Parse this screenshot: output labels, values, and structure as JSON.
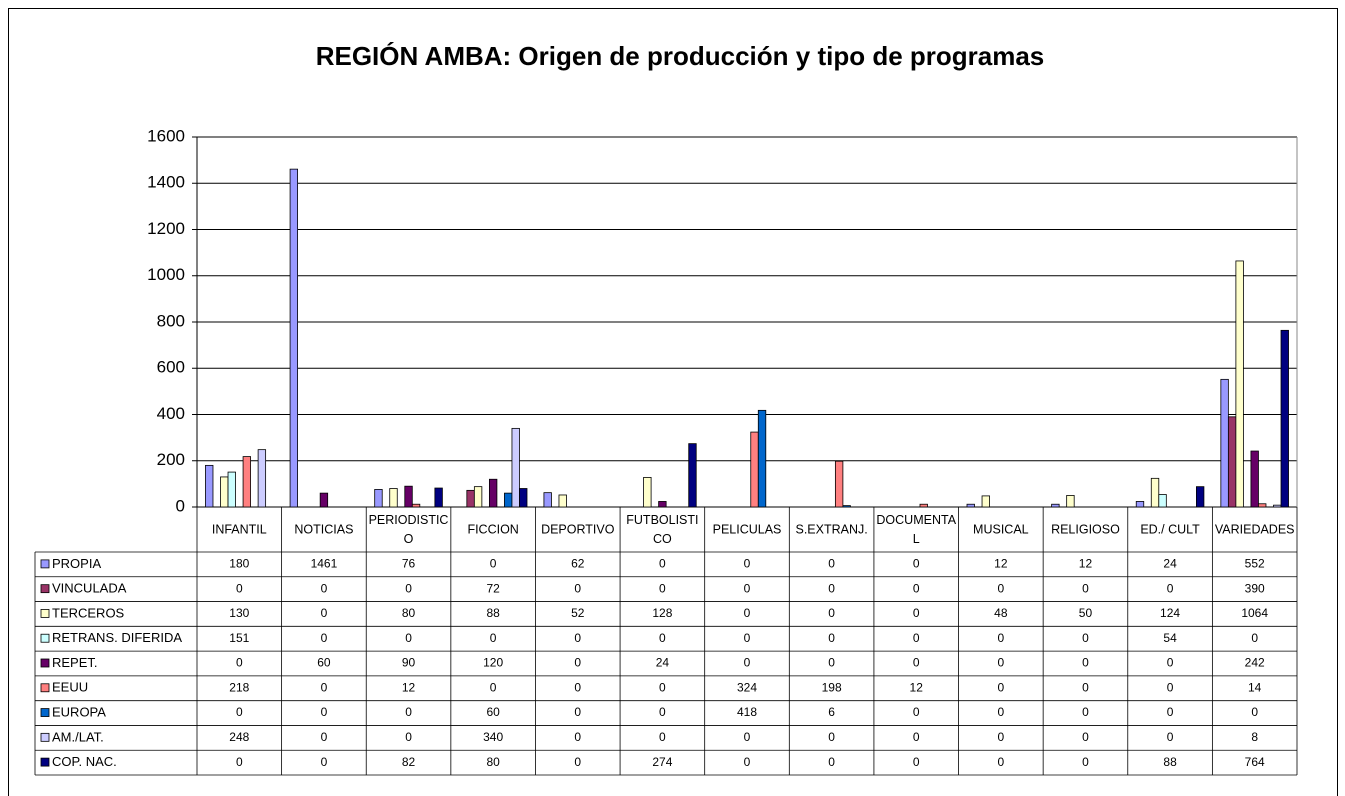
{
  "chart_data": {
    "type": "bar",
    "title": "REGIÓN AMBA: Origen de producción y tipo de programas",
    "categories": [
      "INFANTIL",
      "NOTICIAS",
      "PERIODISTICO",
      "FICCION",
      "DEPORTIVO",
      "FUTBOLISTICO",
      "PELICULAS",
      "S.EXTRANJ.",
      "DOCUMENTAL",
      "MUSICAL",
      "RELIGIOSO",
      "ED./ CULT",
      "VARIEDADES"
    ],
    "series": [
      {
        "name": "PROPIA",
        "color": "#9999ff",
        "values": [
          180,
          1461,
          76,
          0,
          62,
          0,
          0,
          0,
          0,
          12,
          12,
          24,
          552
        ]
      },
      {
        "name": "VINCULADA",
        "color": "#993366",
        "values": [
          0,
          0,
          0,
          72,
          0,
          0,
          0,
          0,
          0,
          0,
          0,
          0,
          390
        ]
      },
      {
        "name": "TERCEROS",
        "color": "#ffffcc",
        "values": [
          130,
          0,
          80,
          88,
          52,
          128,
          0,
          0,
          0,
          48,
          50,
          124,
          1064
        ]
      },
      {
        "name": "RETRANS. DIFERIDA",
        "color": "#ccffff",
        "values": [
          151,
          0,
          0,
          0,
          0,
          0,
          0,
          0,
          0,
          0,
          0,
          54,
          0
        ]
      },
      {
        "name": " REPET.",
        "color": "#660066",
        "values": [
          0,
          60,
          90,
          120,
          0,
          24,
          0,
          0,
          0,
          0,
          0,
          0,
          242
        ]
      },
      {
        "name": "EEUU",
        "color": "#ff8080",
        "values": [
          218,
          0,
          12,
          0,
          0,
          0,
          324,
          198,
          12,
          0,
          0,
          0,
          14
        ]
      },
      {
        "name": "EUROPA",
        "color": "#0066cc",
        "values": [
          0,
          0,
          0,
          60,
          0,
          0,
          418,
          6,
          0,
          0,
          0,
          0,
          0
        ]
      },
      {
        "name": "AM./LAT.",
        "color": "#ccccff",
        "values": [
          248,
          0,
          0,
          340,
          0,
          0,
          0,
          0,
          0,
          0,
          0,
          0,
          8
        ]
      },
      {
        "name": "COP. NAC.",
        "color": "#000080",
        "values": [
          0,
          0,
          82,
          80,
          0,
          274,
          0,
          0,
          0,
          0,
          0,
          88,
          764
        ]
      }
    ],
    "ylim": [
      0,
      1600
    ],
    "yticks": [
      0,
      200,
      400,
      600,
      800,
      1000,
      1200,
      1400,
      1600
    ],
    "grid": true
  }
}
